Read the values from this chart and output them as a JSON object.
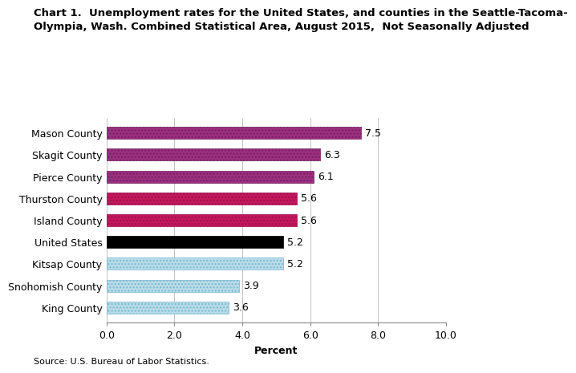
{
  "title_line1": "Chart 1.  Unemployment rates for the United States, and counties in the Seattle-Tacoma-",
  "title_line2": "Olympia, Wash. Combined Statistical Area, August 2015,  Not Seasonally Adjusted",
  "categories": [
    "King County",
    "Snohomish County",
    "Kitsap County",
    "United States",
    "Island County",
    "Thurston County",
    "Pierce County",
    "Skagit County",
    "Mason County"
  ],
  "values": [
    3.6,
    3.9,
    5.2,
    5.2,
    5.6,
    5.6,
    6.1,
    6.3,
    7.5
  ],
  "bar_colors": [
    "#b8dce8",
    "#b8dce8",
    "#b8dce8",
    "#000000",
    "#c2185b",
    "#c2185b",
    "#9b3080",
    "#9b3080",
    "#9b3080"
  ],
  "hatch_patterns": [
    "....",
    "....",
    "....",
    "",
    "....",
    "....",
    "....",
    "....",
    "...."
  ],
  "hatch_colors": [
    "#7ab8d0",
    "#7ab8d0",
    "#7ab8d0",
    "#000000",
    "#a01050",
    "#a01050",
    "#7a2060",
    "#7a2060",
    "#7a2060"
  ],
  "xlim": [
    0,
    10.0
  ],
  "xticks": [
    0.0,
    2.0,
    4.0,
    6.0,
    8.0,
    10.0
  ],
  "source_text": "Source: U.S. Bureau of Labor Statistics.",
  "xlabel": "Percent",
  "value_labels": [
    "3.6",
    "3.9",
    "5.2",
    "5.2",
    "5.6",
    "5.6",
    "6.1",
    "6.3",
    "7.5"
  ],
  "background_color": "#ffffff",
  "title_fontsize": 9.5,
  "label_fontsize": 9,
  "tick_fontsize": 9,
  "bar_height": 0.55
}
